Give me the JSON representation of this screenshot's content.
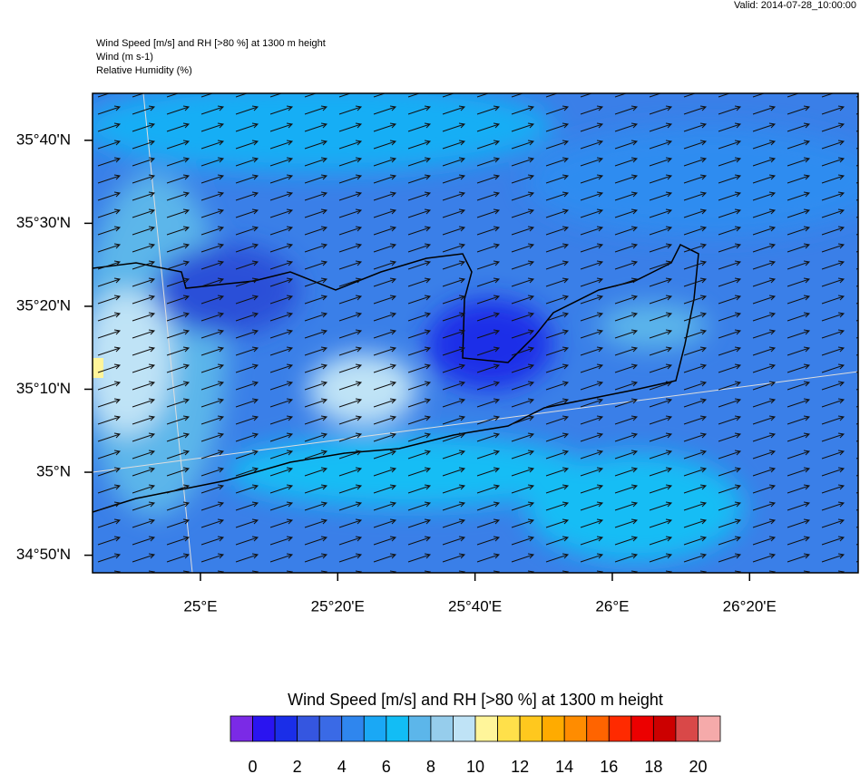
{
  "header": {
    "valid": "Valid: 2014-07-28_10:00:00",
    "lines": [
      "Wind Speed [m/s] and RH [>80 %] at 1300 m height",
      "Wind   (m s-1)",
      "Relative Humidity   (%)"
    ]
  },
  "map": {
    "lon_range": [
      24.738,
      26.597
    ],
    "lat_range": [
      34.798,
      35.761
    ],
    "lon_ticks": [
      {
        "value": 25,
        "label": "25°E"
      },
      {
        "value": 25.3333,
        "label": "25°20'E"
      },
      {
        "value": 25.6667,
        "label": "25°40'E"
      },
      {
        "value": 26,
        "label": "26°E"
      },
      {
        "value": 26.3333,
        "label": "26°20'E"
      }
    ],
    "lat_ticks": [
      {
        "value": 34.8333,
        "label": "34°50'N"
      },
      {
        "value": 35,
        "label": "35°N"
      },
      {
        "value": 35.1667,
        "label": "35°10'N"
      },
      {
        "value": 35.3333,
        "label": "35°20'N"
      },
      {
        "value": 35.5,
        "label": "35°30'N"
      },
      {
        "value": 35.6667,
        "label": "35°40'N"
      }
    ]
  },
  "colorbar": {
    "title": "Wind Speed [m/s] and RH [>80 %] at 1300 m height",
    "range": [
      -1,
      21
    ],
    "colors": [
      "#7b2ae6",
      "#2a14f0",
      "#1a2ee8",
      "#3556e0",
      "#3a6ae6",
      "#2f86ee",
      "#1aa8f5",
      "#12bdf5",
      "#5cb6ea",
      "#96cdec",
      "#bfe3f6",
      "#fff59a",
      "#ffe04a",
      "#ffc81e",
      "#ffab00",
      "#ff8c00",
      "#ff6400",
      "#ff2a00",
      "#ec0000",
      "#cc0000",
      "#d94848",
      "#f5aaaa"
    ],
    "ticks": [
      0,
      2,
      4,
      6,
      8,
      10,
      12,
      14,
      16,
      18,
      20
    ]
  }
}
